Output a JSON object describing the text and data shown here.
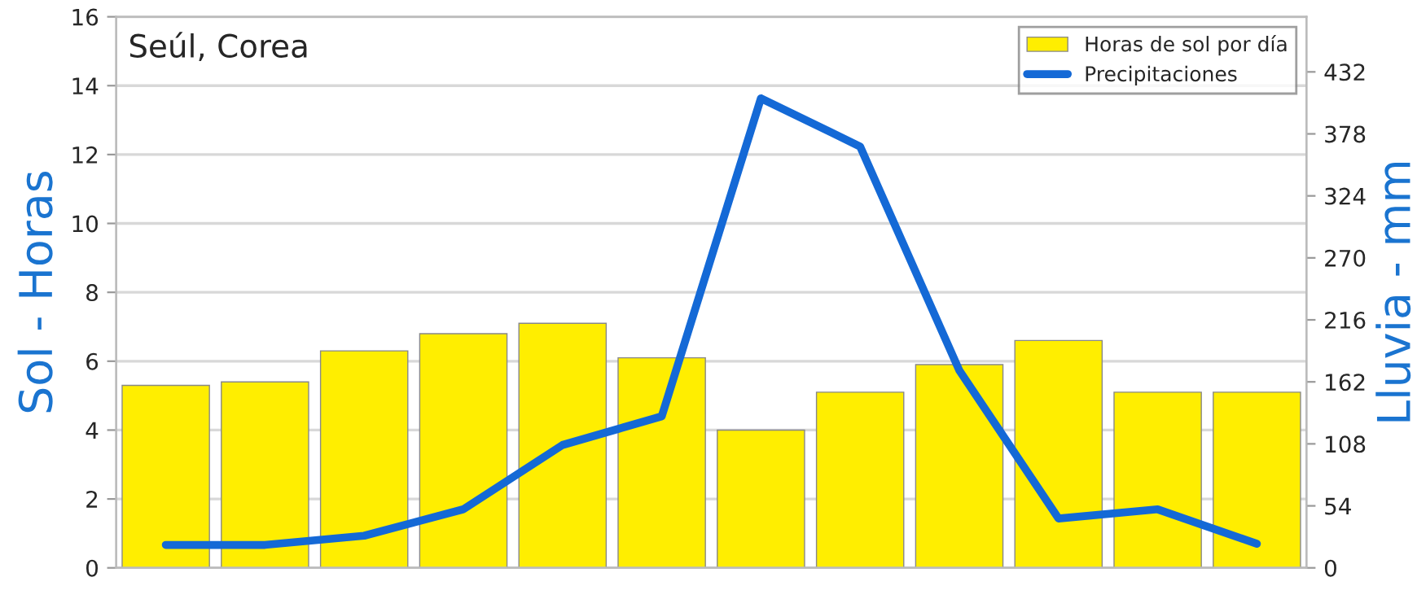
{
  "chart_data": {
    "type": "bar",
    "title": "Seúl, Corea",
    "ylabel": "Sol - Horas",
    "y2label": "Lluvia - mm",
    "categories": [
      null,
      null,
      null,
      null,
      null,
      null,
      null,
      null,
      null,
      null,
      null,
      null
    ],
    "series": [
      {
        "name": "Horas de sol por día",
        "color": "#ffee00",
        "values": [
          5.3,
          5.4,
          6.3,
          6.8,
          7.1,
          6.1,
          4.0,
          5.1,
          5.9,
          6.6,
          5.1,
          5.1
        ]
      },
      {
        "name": "Precipitaciones",
        "type": "line",
        "axis": "y2",
        "color": "#1469d6",
        "values": [
          20,
          20,
          28,
          51,
          107,
          132,
          409,
          367,
          172,
          43,
          51,
          21
        ]
      }
    ],
    "ylim": [
      0,
      16
    ],
    "yticks": [
      0,
      2,
      4,
      6,
      8,
      10,
      12,
      14,
      16
    ],
    "y2lim": [
      0,
      480
    ],
    "y2ticks": [
      0,
      54,
      108,
      162,
      216,
      270,
      324,
      378,
      432
    ],
    "grid": "y",
    "legend": "top right",
    "marker": "none",
    "line_style": "solid"
  }
}
